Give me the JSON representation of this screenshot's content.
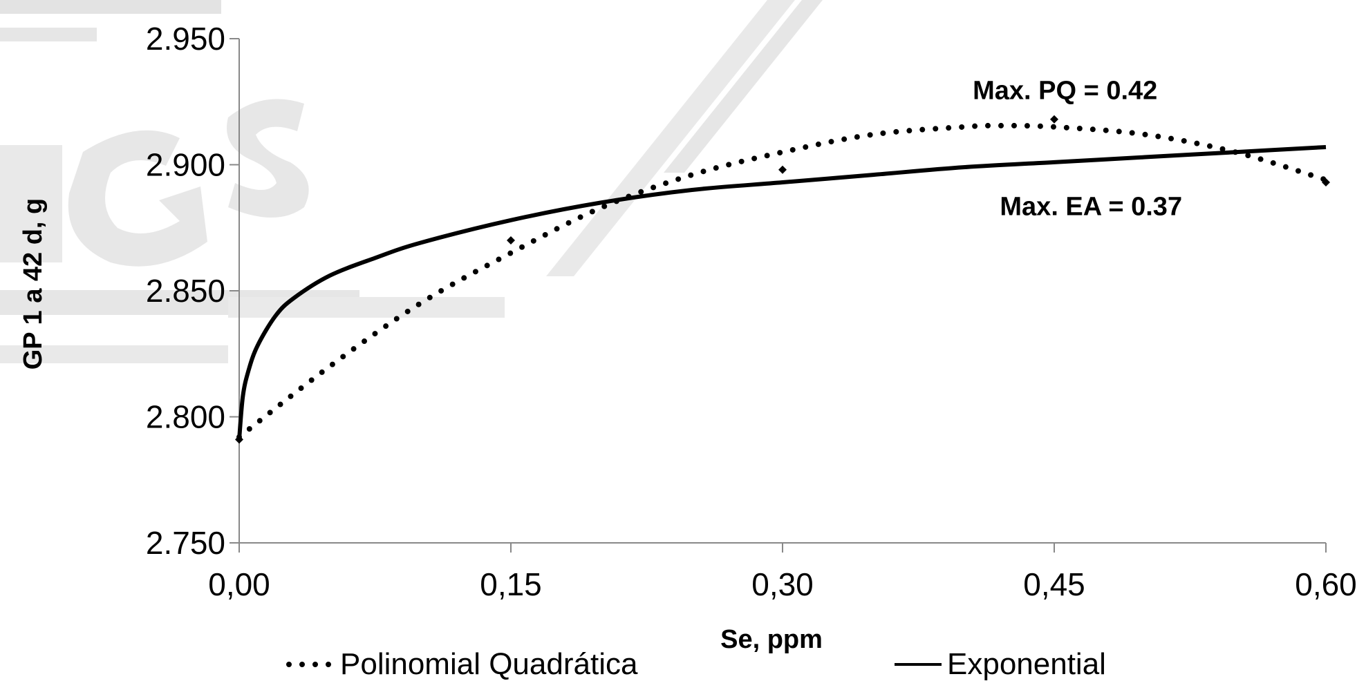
{
  "chart_data": {
    "type": "line",
    "title": "",
    "xlabel": "Se, ppm",
    "ylabel": "GP  1 a 42 d, g",
    "xlim": [
      0,
      0.6
    ],
    "ylim": [
      2.75,
      2.95
    ],
    "x_ticks": [
      {
        "value": 0.0,
        "label": "0,00"
      },
      {
        "value": 0.15,
        "label": "0,15"
      },
      {
        "value": 0.3,
        "label": "0,30"
      },
      {
        "value": 0.45,
        "label": "0,45"
      },
      {
        "value": 0.6,
        "label": "0,60"
      }
    ],
    "y_ticks": [
      {
        "value": 2.75,
        "label": "2.750"
      },
      {
        "value": 2.8,
        "label": "2.800"
      },
      {
        "value": 2.85,
        "label": "2.850"
      },
      {
        "value": 2.9,
        "label": "2.900"
      },
      {
        "value": 2.95,
        "label": "2.950"
      }
    ],
    "grid": false,
    "legend_position": "bottom",
    "observed_points": {
      "x": [
        0.0,
        0.15,
        0.3,
        0.45,
        0.6
      ],
      "y": [
        2.791,
        2.87,
        2.898,
        2.918,
        2.893
      ]
    },
    "series": [
      {
        "name": "Polinomial Quadrática",
        "style": "dotted",
        "x": [
          0.0,
          0.05,
          0.1,
          0.15,
          0.2,
          0.25,
          0.3,
          0.35,
          0.4,
          0.42,
          0.45,
          0.5,
          0.55,
          0.6
        ],
        "y": [
          2.792,
          2.82,
          2.845,
          2.865,
          2.883,
          2.896,
          2.905,
          2.912,
          2.915,
          2.9155,
          2.915,
          2.912,
          2.905,
          2.894
        ]
      },
      {
        "name": "Exponential",
        "style": "solid",
        "x": [
          0.0,
          0.002,
          0.005,
          0.01,
          0.02,
          0.03,
          0.05,
          0.075,
          0.1,
          0.15,
          0.2,
          0.25,
          0.3,
          0.35,
          0.4,
          0.45,
          0.5,
          0.55,
          0.6
        ],
        "y": [
          2.791,
          2.808,
          2.818,
          2.828,
          2.84,
          2.847,
          2.856,
          2.863,
          2.869,
          2.878,
          2.885,
          2.89,
          2.893,
          2.896,
          2.899,
          2.901,
          2.903,
          2.905,
          2.907
        ]
      }
    ],
    "annotations": [
      {
        "text": "Max. PQ = 0.42",
        "x": 0.405,
        "y": 2.926
      },
      {
        "text": "Max. EA = 0.37",
        "x": 0.42,
        "y": 2.88
      }
    ]
  }
}
